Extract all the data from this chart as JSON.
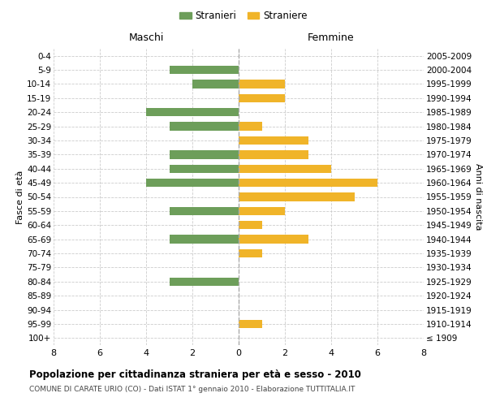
{
  "age_groups": [
    "0-4",
    "5-9",
    "10-14",
    "15-19",
    "20-24",
    "25-29",
    "30-34",
    "35-39",
    "40-44",
    "45-49",
    "50-54",
    "55-59",
    "60-64",
    "65-69",
    "70-74",
    "75-79",
    "80-84",
    "85-89",
    "90-94",
    "95-99",
    "100+"
  ],
  "birth_years": [
    "2005-2009",
    "2000-2004",
    "1995-1999",
    "1990-1994",
    "1985-1989",
    "1980-1984",
    "1975-1979",
    "1970-1974",
    "1965-1969",
    "1960-1964",
    "1955-1959",
    "1950-1954",
    "1945-1949",
    "1940-1944",
    "1935-1939",
    "1930-1934",
    "1925-1929",
    "1920-1924",
    "1915-1919",
    "1910-1914",
    "≤ 1909"
  ],
  "maschi": [
    0,
    3,
    2,
    0,
    4,
    3,
    0,
    3,
    3,
    4,
    0,
    3,
    0,
    3,
    0,
    0,
    3,
    0,
    0,
    0,
    0
  ],
  "femmine": [
    0,
    0,
    2,
    2,
    0,
    1,
    3,
    3,
    4,
    6,
    5,
    2,
    1,
    3,
    1,
    0,
    0,
    0,
    0,
    1,
    0
  ],
  "maschi_color": "#6d9e5a",
  "femmine_color": "#f0b429",
  "bg_color": "#ffffff",
  "grid_color": "#cccccc",
  "dashed_line_color": "#aaaaaa",
  "xlim": 8,
  "title": "Popolazione per cittadinanza straniera per età e sesso - 2010",
  "subtitle": "COMUNE DI CARATE URIO (CO) - Dati ISTAT 1° gennaio 2010 - Elaborazione TUTTITALIA.IT",
  "ylabel_left": "Fasce di età",
  "ylabel_right": "Anni di nascita",
  "legend_maschi": "Stranieri",
  "legend_femmine": "Straniere",
  "maschi_header": "Maschi",
  "femmine_header": "Femmine"
}
